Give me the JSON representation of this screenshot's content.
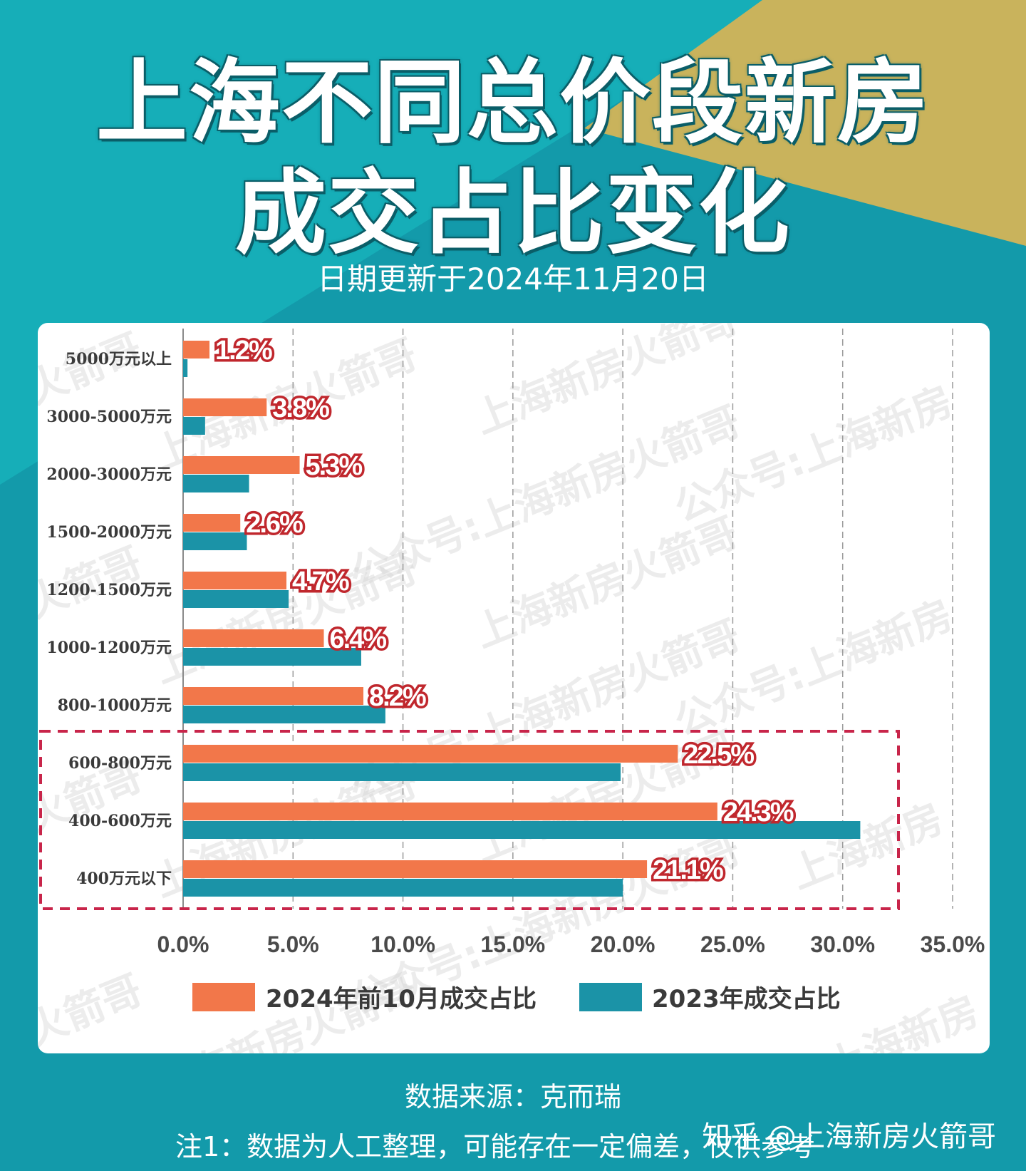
{
  "title_line1": "上海不同总价段新房",
  "title_line2": "成交占比变化",
  "subtitle": "日期更新于2024年11月20日",
  "chart_data": {
    "type": "bar",
    "orientation": "horizontal",
    "categories": [
      "5000万元以上",
      "3000-5000万元",
      "2000-3000万元",
      "1500-2000万元",
      "1200-1500万元",
      "1000-1200万元",
      "800-1000万元",
      "600-800万元",
      "400-600万元",
      "400万元以下"
    ],
    "series": [
      {
        "name": "2024年前10月成交占比",
        "color": "#f2774a",
        "values": [
          1.2,
          3.8,
          5.3,
          2.6,
          4.7,
          6.4,
          8.2,
          22.5,
          24.3,
          21.1
        ],
        "data_labels": [
          "1.2%",
          "3.8%",
          "5.3%",
          "2.6%",
          "4.7%",
          "6.4%",
          "8.2%",
          "22.5%",
          "24.3%",
          "21.1%"
        ]
      },
      {
        "name": "2023年成交占比",
        "color": "#1b93a7",
        "values": [
          0.2,
          1.0,
          3.0,
          2.9,
          4.8,
          8.1,
          9.2,
          19.9,
          30.8,
          20.0
        ]
      }
    ],
    "x_ticks": [
      "0.0%",
      "5.0%",
      "10.0%",
      "15.0%",
      "20.0%",
      "25.0%",
      "30.0%",
      "35.0%"
    ],
    "xlim": [
      0,
      35
    ],
    "grid": "vertical dashed",
    "legend_position": "bottom",
    "highlight_categories": [
      "600-800万元",
      "400-600万元",
      "400万元以下"
    ]
  },
  "watermarks": [
    "火箭哥",
    "上海新房火箭哥",
    "公众号:上海新房火箭哥",
    "公众号:上海新房",
    "上海新房"
  ],
  "footer_source": "数据来源：克而瑞",
  "footer_note": "注1：数据为人工整理，可能存在一定偏差，仅供参考",
  "credit": "知乎 @上海新房火箭哥",
  "colors": {
    "background_teal": "#139aaa",
    "background_gold": "#c9b35c",
    "bar_2024": "#f2774a",
    "bar_2023": "#1b93a7",
    "label_red": "#c0272d",
    "highlight_box": "#c8254a"
  }
}
